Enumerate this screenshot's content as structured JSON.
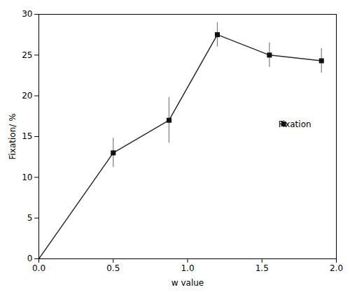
{
  "chart_data": {
    "type": "line",
    "x": [
      0.0,
      0.5,
      0.875,
      1.2,
      1.55,
      1.9
    ],
    "series": [
      {
        "type": "line",
        "color": "#2a2a2a",
        "values": [
          0.0,
          13.0,
          17.0,
          27.5,
          25.0,
          24.3
        ]
      },
      {
        "name": "Fixation",
        "type": "scatter",
        "color": "#111111",
        "marker": "square",
        "values": [
          null,
          13.0,
          17.0,
          27.5,
          25.0,
          24.3
        ],
        "yerr": [
          null,
          1.8,
          2.8,
          1.5,
          1.5,
          1.5
        ]
      }
    ],
    "xlabel": "w value",
    "ylabel": "Fixation/ %",
    "xlim": [
      0.0,
      2.0
    ],
    "ylim": [
      0,
      30
    ],
    "xticks": [
      {
        "value": 0.0,
        "label": "0.0"
      },
      0.5,
      {
        "value": 1.0,
        "label": "1.0"
      },
      1.5,
      {
        "value": 2.0,
        "label": "2.0"
      }
    ],
    "yticks": [
      0,
      5,
      10,
      15,
      20,
      25,
      30
    ],
    "legend": "right",
    "grid": false
  }
}
